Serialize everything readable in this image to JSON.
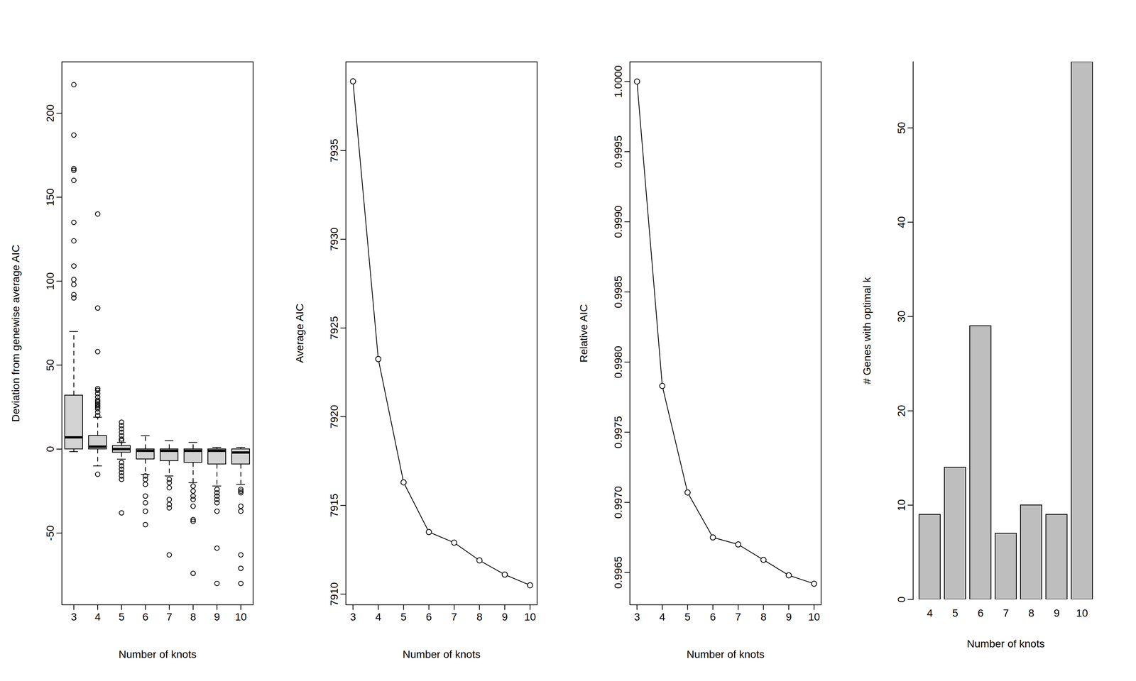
{
  "chart_data": [
    {
      "type": "boxplot",
      "x_label": "Number of knots",
      "y_label": "Deviation from genewise average AIC",
      "categories": [
        3,
        4,
        5,
        6,
        7,
        8,
        9,
        10
      ],
      "color": "#d3d3d3",
      "line_style": "dashed",
      "boxes": [
        {
          "q1": 0,
          "median": 7,
          "q3": 32,
          "whisker_low": -1.5,
          "whisker_high": 70,
          "outliers": [
            217,
            187,
            167,
            166,
            160,
            135,
            124,
            109,
            101,
            98,
            92,
            90
          ]
        },
        {
          "q1": 0,
          "median": 1.5,
          "q3": 8,
          "whisker_low": -10,
          "whisker_high": 19,
          "outliers": [
            140,
            84,
            58,
            36,
            35,
            33,
            31,
            29,
            28,
            27,
            26,
            25,
            24,
            22,
            20,
            -15
          ]
        },
        {
          "q1": -2,
          "median": 0,
          "q3": 2,
          "whisker_low": -6,
          "whisker_high": 4,
          "outliers": [
            16,
            14,
            12,
            10,
            8,
            6,
            5,
            -8,
            -10,
            -12,
            -14,
            -16,
            -18,
            -38
          ]
        },
        {
          "q1": -6,
          "median": -1,
          "q3": 0,
          "whisker_low": -15,
          "whisker_high": 8,
          "outliers": [
            -16,
            -18,
            -21,
            -28,
            -32,
            -37,
            -45
          ]
        },
        {
          "q1": -7,
          "median": -1,
          "q3": 0,
          "whisker_low": -16,
          "whisker_high": 5,
          "outliers": [
            -18,
            -20,
            -23,
            -30,
            -33,
            -35,
            -63
          ]
        },
        {
          "q1": -8,
          "median": -1,
          "q3": 0,
          "whisker_low": -20,
          "whisker_high": 4,
          "outliers": [
            -22,
            -25,
            -28,
            -30,
            -34,
            -42,
            -43,
            -74
          ]
        },
        {
          "q1": -9,
          "median": -1,
          "q3": 0,
          "whisker_low": -22,
          "whisker_high": 1,
          "outliers": [
            -24,
            -26,
            -28,
            -30,
            -32,
            -37,
            -59,
            -80
          ]
        },
        {
          "q1": -9,
          "median": -2,
          "q3": 0,
          "whisker_low": -21,
          "whisker_high": 1,
          "outliers": [
            -24,
            -25,
            -26,
            -34,
            -37,
            -63,
            -71,
            -80
          ]
        }
      ],
      "ylim": [
        -92.7,
        230.6
      ],
      "yticks": [
        -50,
        0,
        50,
        100,
        150,
        200
      ]
    },
    {
      "type": "line",
      "x_label": "Number of knots",
      "y_label": "Average AIC",
      "x": [
        3,
        4,
        5,
        6,
        7,
        8,
        9,
        10
      ],
      "values": [
        7938.9,
        7923.25,
        7916.3,
        7913.5,
        7912.9,
        7911.9,
        7911.1,
        7910.5
      ],
      "color": "#000000",
      "marker": "circle",
      "xlim": [
        2.72,
        10.28
      ],
      "xticks": [
        3,
        4,
        5,
        6,
        7,
        8,
        9,
        10
      ],
      "ylim": [
        7909.4,
        7940
      ],
      "yticks": [
        7910,
        7915,
        7920,
        7925,
        7930,
        7935
      ]
    },
    {
      "type": "line",
      "x_label": "Number of knots",
      "y_label": "Relative AIC",
      "x": [
        3,
        4,
        5,
        6,
        7,
        8,
        9,
        10
      ],
      "values": [
        1.0,
        0.99783,
        0.99707,
        0.99675,
        0.9967,
        0.99659,
        0.99648,
        0.99642
      ],
      "color": "#000000",
      "marker": "circle",
      "xlim": [
        2.72,
        10.28
      ],
      "xticks": [
        3,
        4,
        5,
        6,
        7,
        8,
        9,
        10
      ],
      "ylim": [
        0.99627,
        1.00014
      ],
      "yticks": [
        0.9965,
        {
          "value": 0.997,
          "label": "0.9970"
        },
        0.9975,
        {
          "value": 0.998,
          "label": "0.9980"
        },
        0.9985,
        {
          "value": 0.999,
          "label": "0.9990"
        },
        0.9995,
        {
          "value": 1,
          "label": "1.0000"
        }
      ]
    },
    {
      "type": "bar",
      "x_label": "Number of knots",
      "y_label": "# Genes with optimal k",
      "categories": [
        4,
        5,
        6,
        7,
        8,
        9,
        10
      ],
      "values": [
        9,
        14,
        29,
        7,
        10,
        9,
        57
      ],
      "color": "#bebebe",
      "ylim": [
        0,
        57
      ],
      "yticks": [
        0,
        10,
        20,
        30,
        40,
        50
      ]
    }
  ]
}
